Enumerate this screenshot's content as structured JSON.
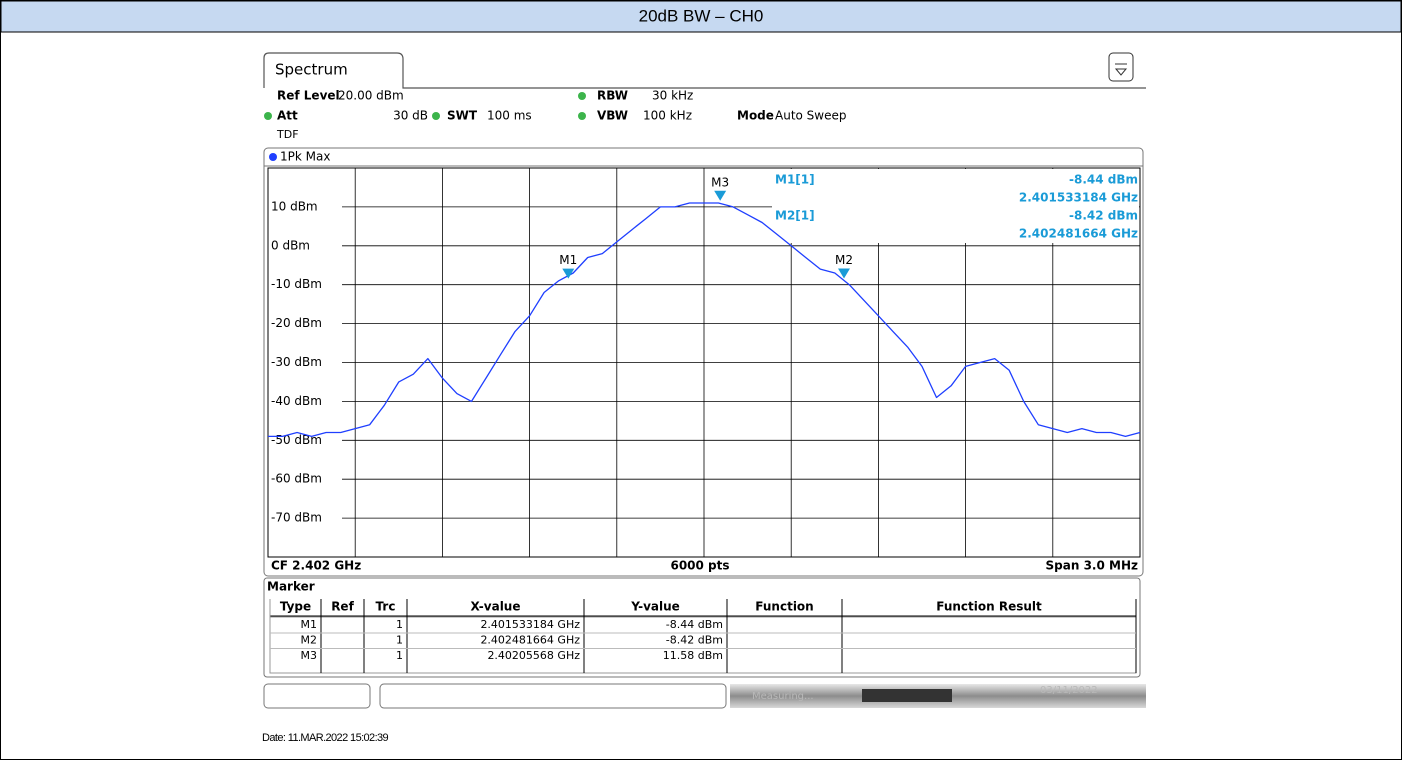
{
  "header": {
    "title": "20dB BW – CH0"
  },
  "screen": {
    "tab": "Spectrum",
    "ref_level_label": "Ref Level",
    "ref_level": "20.00 dBm",
    "rbw_label": "RBW",
    "rbw": "30 kHz",
    "att_label": "Att",
    "att": "30 dB",
    "swt_label": "SWT",
    "swt": "100 ms",
    "vbw_label": "VBW",
    "vbw": "100 kHz",
    "mode_label": "Mode",
    "mode": "Auto Sweep",
    "tdf": "TDF",
    "trace_label": "1Pk Max",
    "cf": "CF 2.402 GHz",
    "points": "6000 pts",
    "span": "Span 3.0 MHz",
    "readout": [
      {
        "label": "M1[1]",
        "y": "-8.44 dBm",
        "x": "2.401533184 GHz"
      },
      {
        "label": "M2[1]",
        "y": "-8.42 dBm",
        "x": "2.402481664 GHz"
      }
    ]
  },
  "chart_data": {
    "type": "line",
    "xlim": [
      2.4005,
      2.4035
    ],
    "ylim": [
      -80,
      20
    ],
    "yticks": [
      {
        "value": 10,
        "label": "10 dBm"
      },
      {
        "value": 0,
        "label": "0 dBm"
      },
      {
        "value": -10,
        "label": "-10 dBm"
      },
      {
        "value": -20,
        "label": "-20 dBm"
      },
      {
        "value": -30,
        "label": "-30 dBm"
      },
      {
        "value": -40,
        "label": "-40 dBm"
      },
      {
        "value": -50,
        "label": "-50 dBm"
      },
      {
        "value": -60,
        "label": "-60 dBm"
      },
      {
        "value": -70,
        "label": "-70 dBm"
      }
    ],
    "grid": true,
    "x": [
      2.4005,
      2.40055,
      2.4006,
      2.40065,
      2.4007,
      2.40075,
      2.4008,
      2.40085,
      2.4009,
      2.40095,
      2.401,
      2.40105,
      2.4011,
      2.40115,
      2.4012,
      2.40125,
      2.4013,
      2.40135,
      2.4014,
      2.40145,
      2.4015,
      2.40155,
      2.4016,
      2.40165,
      2.4017,
      2.40175,
      2.4018,
      2.40185,
      2.4019,
      2.40195,
      2.402,
      2.40205,
      2.4021,
      2.40215,
      2.4022,
      2.40225,
      2.4023,
      2.40235,
      2.4024,
      2.40245,
      2.4025,
      2.40255,
      2.4026,
      2.40265,
      2.4027,
      2.40275,
      2.4028,
      2.40285,
      2.4029,
      2.40295,
      2.403,
      2.40305,
      2.4031,
      2.40315,
      2.4032,
      2.40325,
      2.4033,
      2.40335,
      2.4034,
      2.40345,
      2.4035
    ],
    "series": [
      {
        "name": "1Pk Max",
        "color": "#1f3fff",
        "values": [
          -49,
          -49,
          -48,
          -49,
          -48,
          -48,
          -47,
          -46,
          -41,
          -35,
          -33,
          -29,
          -34,
          -38,
          -40,
          -34,
          -28,
          -22,
          -18,
          -12,
          -9,
          -7,
          -3,
          -2,
          1,
          4,
          7,
          10,
          10,
          11,
          11,
          11,
          10,
          8,
          6,
          3,
          0,
          -3,
          -6,
          -7,
          -10,
          -14,
          -18,
          -22,
          -26,
          -31,
          -39,
          -36,
          -31,
          -30,
          -29,
          -32,
          -40,
          -46,
          -47,
          -48,
          -47,
          -48,
          -48,
          -49,
          -48
        ]
      }
    ],
    "markers": [
      {
        "name": "M1",
        "x": 2.401533184,
        "y": -8.44
      },
      {
        "name": "M2",
        "x": 2.402481664,
        "y": -8.42
      },
      {
        "name": "M3",
        "x": 2.40205568,
        "y": 11.58
      }
    ],
    "marker_color": "#1a9bd7"
  },
  "marker_table": {
    "title": "Marker",
    "headers": [
      "Type",
      "Ref",
      "Trc",
      "X-value",
      "Y-value",
      "Function",
      "Function Result"
    ],
    "rows": [
      {
        "type": "M1",
        "trc": 1,
        "x": "2.401533184 GHz",
        "y": "-8.44 dBm"
      },
      {
        "type": "M2",
        "trc": 1,
        "x": "2.402481664 GHz",
        "y": "-8.42 dBm"
      },
      {
        "type": "M3",
        "trc": 1,
        "x": "2.40205568 GHz",
        "y": "11.58 dBm"
      }
    ]
  },
  "status": {
    "state": "Measuring...",
    "date": "03/11/2022"
  },
  "footer": {
    "date": "Date: 11.MAR.2022 15:02:39"
  }
}
